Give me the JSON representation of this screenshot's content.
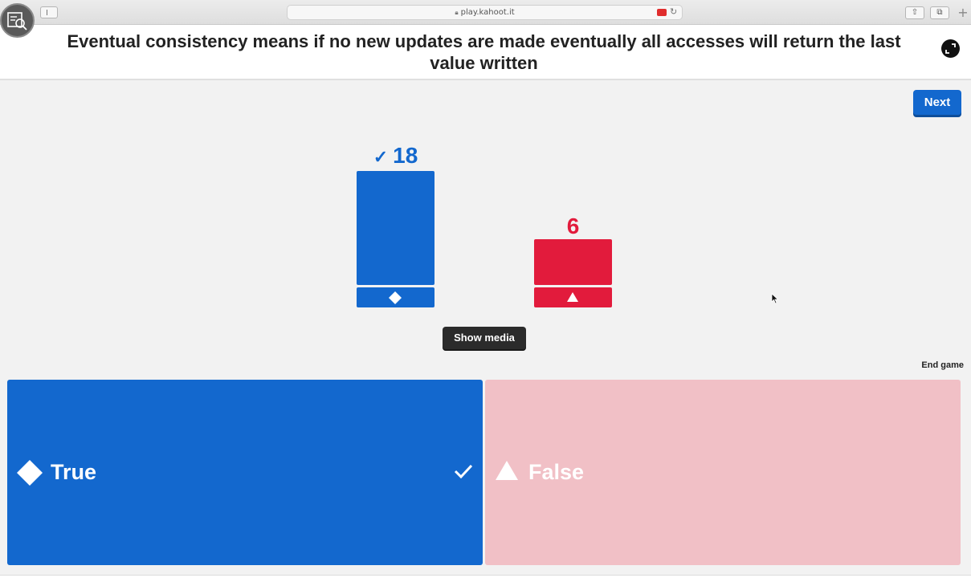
{
  "browser": {
    "url": "play.kahoot.it",
    "icons": [
      "sidebar-icon",
      "lock-icon",
      "extension-icon",
      "reload-icon",
      "share-icon",
      "tabs-icon",
      "new-tab-icon"
    ]
  },
  "question": {
    "text": "Eventual consistency means if no new updates are made eventually all accesses will return the last value written"
  },
  "controls": {
    "next_label": "Next",
    "show_media_label": "Show media",
    "end_game_label": "End game"
  },
  "chart_data": {
    "type": "bar",
    "categories": [
      "True",
      "False"
    ],
    "values": [
      18,
      6
    ],
    "correct": [
      "True"
    ],
    "colors": [
      "#1368ce",
      "#e21b3c"
    ],
    "shapes": [
      "diamond",
      "triangle"
    ]
  },
  "results": {
    "true_count": "18",
    "false_count": "6",
    "correct_mark": "✓"
  },
  "answers": [
    {
      "label": "True",
      "shape": "diamond-icon",
      "color": "#1368ce",
      "correct": true
    },
    {
      "label": "False",
      "shape": "triangle-icon",
      "color": "#f1c0c6",
      "correct": false
    }
  ]
}
